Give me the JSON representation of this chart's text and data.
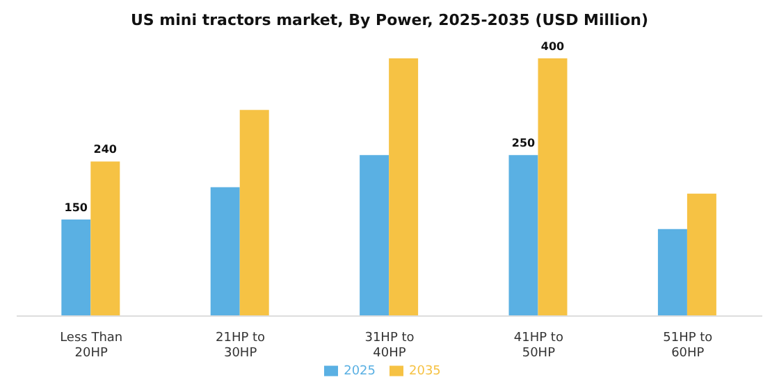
{
  "chart_data": {
    "type": "bar",
    "title": "US mini tractors market, By Power, 2025-2035 (USD Million)",
    "categories": [
      "Less Than 20HP",
      "21HP to 30HP",
      "31HP to 40HP",
      "41HP to 50HP",
      "51HP to 60HP"
    ],
    "series": [
      {
        "name": "2025",
        "color": "#5ab0e3",
        "values": [
          150,
          200,
          250,
          250,
          135
        ],
        "value_labels": [
          "150",
          null,
          null,
          "250",
          null
        ]
      },
      {
        "name": "2035",
        "color": "#f6c244",
        "values": [
          240,
          320,
          400,
          400,
          190
        ],
        "value_labels": [
          "240",
          null,
          null,
          "400",
          null
        ]
      }
    ],
    "legend": "bottom",
    "grid": false
  }
}
